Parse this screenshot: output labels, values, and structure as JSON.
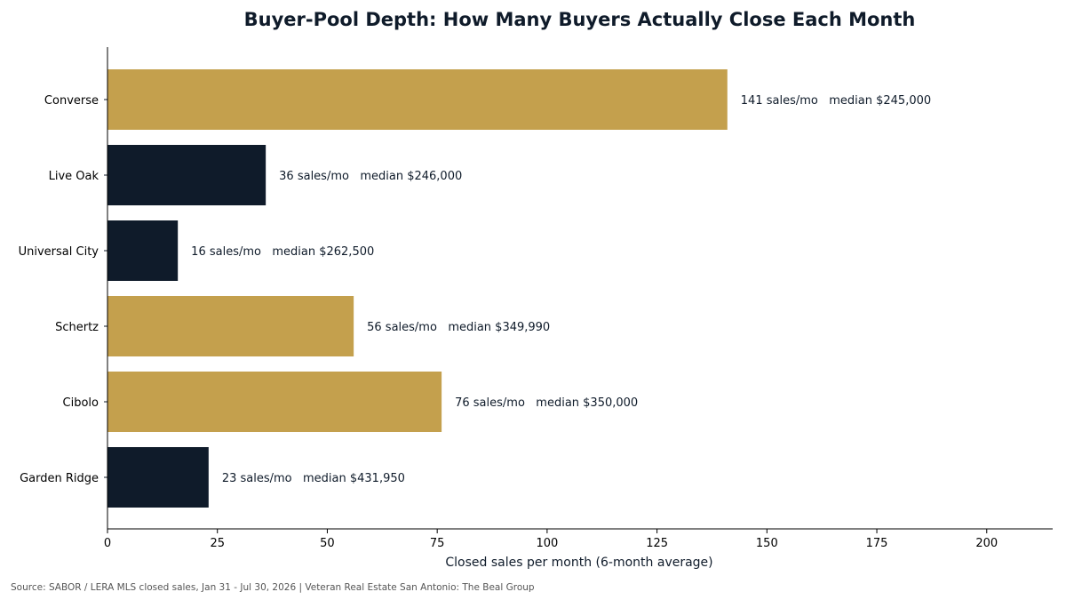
{
  "chart_data": {
    "type": "bar",
    "orientation": "horizontal",
    "title": "Buyer-Pool Depth: How Many Buyers Actually Close Each Month",
    "xlabel": "Closed sales per month (6-month average)",
    "ylabel": "",
    "xlim": [
      0,
      215
    ],
    "xticks": [
      0,
      25,
      50,
      75,
      100,
      125,
      150,
      175,
      200
    ],
    "grid": false,
    "categories": [
      "Converse",
      "Live Oak",
      "Universal City",
      "Schertz",
      "Cibolo",
      "Garden Ridge"
    ],
    "values": [
      141,
      36,
      16,
      56,
      76,
      23
    ],
    "bar_colors": [
      "#c4a04d",
      "#0f1b2a",
      "#0f1b2a",
      "#c4a04d",
      "#c4a04d",
      "#0f1b2a"
    ],
    "data_labels": [
      "141 sales/mo   median $245,000",
      "36 sales/mo   median $246,000",
      "16 sales/mo   median $262,500",
      "56 sales/mo   median $349,990",
      "76 sales/mo   median $350,000",
      "23 sales/mo   median $431,950"
    ],
    "source": "Source: SABOR / LERA MLS closed sales, Jan 31 - Jul 30, 2026 | Veteran Real Estate San Antonio: The Beal Group"
  },
  "colors": {
    "gold": "#c4a04d",
    "navy": "#0f1b2a",
    "text": "#0f1b2a",
    "muted": "#555555"
  }
}
